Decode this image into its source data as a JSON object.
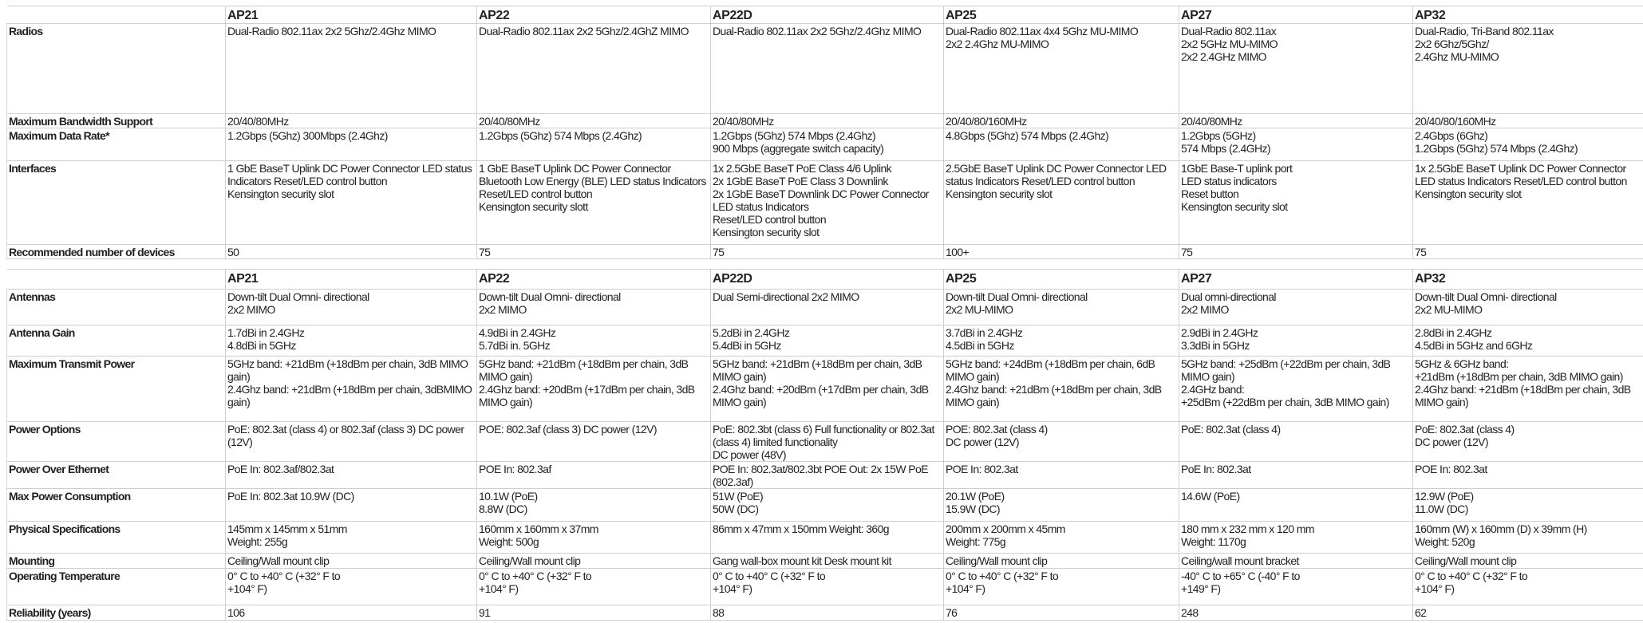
{
  "table1": {
    "columns": [
      "",
      "AP21",
      "AP22",
      "AP22D",
      "AP25",
      "AP27",
      "AP32"
    ],
    "rows": [
      {
        "label": "Radios",
        "values": [
          "Dual-Radio 802.11ax 2x2 5Ghz/2.4Ghz MIMO",
          "Dual-Radio 802.11ax 2x2 5Ghz/2.4GhZ MIMO",
          "Dual-Radio 802.11ax 2x2 5Ghz/2.4Ghz MIMO",
          "Dual-Radio 802.11ax 4x4 5Ghz MU-MIMO\n2x2 2.4Ghz MU-MIMO",
          "Dual-Radio 802.11ax\n2x2 5GHz MU-MIMO\n2x2 2.4GHz MIMO",
          "Dual-Radio, Tri-Band 802.11ax\n2x2 6Ghz/5Ghz/\n2.4Ghz MU-MIMO"
        ]
      },
      {
        "label": "Maximum Bandwidth Support",
        "values": [
          "20/40/80MHz",
          "20/40/80MHz",
          "20/40/80MHz",
          "20/40/80/160MHz",
          "20/40/80MHz",
          "20/40/80/160MHz"
        ]
      },
      {
        "label": "Maximum Data Rate*",
        "values": [
          "1.2Gbps (5Ghz) 300Mbps (2.4Ghz)",
          "1.2Gbps (5Ghz) 574 Mbps (2.4Ghz)",
          "1.2Gbps (5Ghz) 574 Mbps (2.4Ghz)\n900 Mbps (aggregate switch capacity)",
          "4.8Gbps (5Ghz) 574 Mbps (2.4Ghz)",
          "1.2Gbps (5GHz)\n574 Mbps (2.4GHz)",
          "2.4Gbps (6Ghz)\n1.2Gbps (5Ghz) 574 Mbps (2.4Ghz)"
        ]
      },
      {
        "label": "Interfaces",
        "values": [
          "1 GbE BaseT Uplink DC Power Connector LED status Indicators Reset/LED control button\nKensington security slot",
          "1 GbE BaseT Uplink DC Power Connector Bluetooth Low Energy (BLE) LED status Indicators Reset/LED control button\nKensington security slott",
          "1x 2.5GbE BaseT PoE Class 4/6 Uplink\n2x 1GbE BaseT PoE Class 3 Downlink\n2x 1GbE BaseT Downlink DC Power Connector  LED status Indicators\nReset/LED control  button\nKensington security slot",
          "2.5GbE BaseT Uplink DC Power Connector LED status Indicators Reset/LED control button\nKensington security slot",
          "1GbE Base-T uplink port\nLED status indicators\nReset button\nKensington security slot",
          "1x 2.5GbE BaseT Uplink DC Power Connector LED status Indicators Reset/LED control  button\nKensington security slot"
        ]
      },
      {
        "label": "Recommended number of devices",
        "values": [
          "50",
          "75",
          "75",
          "100+",
          "75",
          "75"
        ]
      }
    ]
  },
  "table2": {
    "columns": [
      "",
      "AP21",
      "AP22",
      "AP22D",
      "AP25",
      "AP27",
      "AP32"
    ],
    "rows": [
      {
        "label": "Antennas",
        "values": [
          "Down-tilt Dual Omni- directional\n2x2 MIMO",
          "Down-tilt Dual Omni- directional\n2x2 MIMO",
          "Dual Semi-directional 2x2 MIMO",
          "Down-tilt Dual Omni- directional\n2x2 MU-MIMO",
          "Dual omni-directional\n2x2 MIMO",
          "Down-tilt Dual Omni- directional\n2x2 MU-MIMO"
        ]
      },
      {
        "label": "Antenna Gain",
        "values": [
          "1.7dBi in 2.4GHz\n4.8dBi in 5GHz",
          "4.9dBi in 2.4GHz\n5.7dBi in. 5GHz",
          "5.2dBi in 2.4GHz\n5.4dBi in 5GHz",
          "3.7dBi in 2.4GHz\n4.5dBi in 5GHz",
          "2.9dBi in 2.4GHz\n3.3dBi in 5GHz",
          "2.8dBi in 2.4GHz\n4.5dBi in 5GHz and 6GHz"
        ]
      },
      {
        "label": "Maximum Transmit Power",
        "values": [
          "5GHz band: +21dBm (+18dBm per chain, 3dB MIMO gain)\n2.4Ghz band: +21dBm (+18dBm per chain, 3dBMIMO gain)",
          "5GHz band: +21dBm (+18dBm per chain, 3dB MIMO gain)\n2.4Ghz band: +20dBm (+17dBm per chain, 3dB MIMO gain)",
          "5GHz band: +21dBm (+18dBm per chain, 3dB MIMO gain)\n2.4Ghz band: +20dBm (+17dBm per chain, 3dB MIMO gain)",
          "5GHz band: +24dBm (+18dBm per chain, 6dB MIMO gain)\n2.4Ghz band: +21dBm (+18dBm per chain, 3dB MIMO gain)",
          "5GHz band: +25dBm (+22dBm per chain, 3dB MIMO gain)\n2.4GHz band:\n+25dBm (+22dBm per chain, 3dB MIMO gain)",
          "5GHz & 6GHz band:\n+21dBm (+18dBm per chain, 3dB MIMO gain)\n2.4Ghz band: +21dBm (+18dBm per chain, 3dB MIMO gain)"
        ]
      },
      {
        "label": "Power Options",
        "values": [
          "PoE: 802.3at (class 4) or 802.3af (class 3) DC power (12V)",
          "POE: 802.3af (class 3) DC power (12V)",
          "PoE: 802.3bt (class 6) Full functionality or 802.3at (class 4) limited functionality\nDC power (48V)",
          "POE: 802.3at (class 4)\nDC power (12V)",
          "PoE: 802.3at (class 4)",
          "PoE: 802.3at (class 4)\nDC power (12V)"
        ]
      },
      {
        "label": "Power Over Ethernet",
        "values": [
          "PoE In: 802.3af/802.3at",
          "POE In: 802.3af",
          "POE In: 802.3at/802.3bt POE Out: 2x 15W PoE (802.3af)",
          "POE In: 802.3at",
          "PoE In: 802.3at",
          "POE In: 802.3at"
        ]
      },
      {
        "label": "Max Power Consumption",
        "values": [
          "PoE In: 802.3at 10.9W (DC)",
          "10.1W (PoE)\n8.8W (DC)",
          "51W (PoE)\n50W (DC)",
          "20.1W (PoE)\n15.9W (DC)",
          "14.6W (PoE)",
          "12.9W (PoE)\n11.0W (DC)"
        ]
      },
      {
        "label": "Physical Specifications",
        "values": [
          "145mm x 145mm x 51mm\nWeight: 255g",
          "160mm x 160mm x 37mm\nWeight: 500g",
          "86mm x 47mm x 150mm Weight: 360g",
          "200mm x 200mm x 45mm\nWeight: 775g",
          "180 mm x 232 mm x 120 mm\nWeight: 1170g",
          "160mm (W) x 160mm (D) x 39mm (H)\nWeight: 520g"
        ]
      },
      {
        "label": "Mounting",
        "values": [
          "Ceiling/Wall mount clip",
          "Ceiling/Wall mount clip",
          "Gang wall-box mount kit Desk mount kit",
          "Ceiling/Wall mount clip",
          "Ceiling/wall mount bracket",
          "Ceiling/Wall mount clip"
        ]
      },
      {
        "label": "Operating Temperature",
        "values": [
          "0° C to +40° C (+32° F to\n+104° F)",
          "0° C to +40° C (+32° F to\n+104° F)",
          "0° C to +40° C (+32° F to\n+104° F)",
          "0° C to +40° C (+32° F to\n+104° F)",
          "-40° C to +65° C (-40° F to\n+149° F)",
          "0° C to +40° C (+32° F to\n+104° F)"
        ]
      },
      {
        "label": "Reliability (years)",
        "values": [
          "106",
          "91",
          "88",
          "76",
          "248",
          "62"
        ]
      }
    ]
  }
}
